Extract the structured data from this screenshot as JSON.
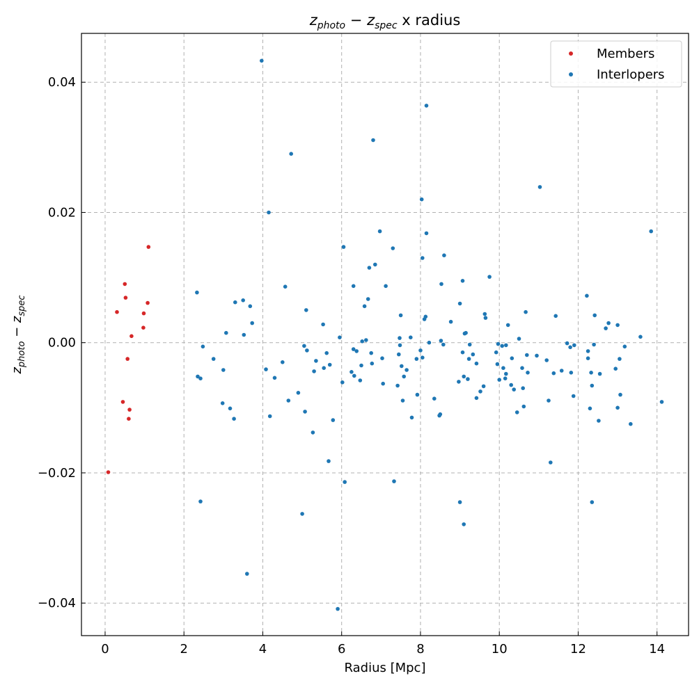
{
  "chart_data": {
    "type": "scatter",
    "title": {
      "var": "z",
      "sub_a": "photo",
      "minus": " − ",
      "sub_b": "spec",
      "suffix": " x radius"
    },
    "xlabel": "Radius [Mpc]",
    "ylabel": {
      "var": "z",
      "sub_a": "photo",
      "minus": " − ",
      "sub_b": "spec"
    },
    "xlim": [
      -0.6,
      14.8
    ],
    "ylim": [
      -0.045,
      0.0475
    ],
    "xticks": [
      0,
      2,
      4,
      6,
      8,
      10,
      12,
      14
    ],
    "xtick_labels": [
      "0",
      "2",
      "4",
      "6",
      "8",
      "10",
      "12",
      "14"
    ],
    "yticks": [
      -0.04,
      -0.02,
      0.0,
      0.02,
      0.04
    ],
    "ytick_labels": [
      "−0.04",
      "−0.02",
      "0.00",
      "0.02",
      "0.04"
    ],
    "grid": true,
    "legend_position": "top-right",
    "series": [
      {
        "name": "Members",
        "color": "#d62728",
        "points": [
          [
            0.08,
            -0.0199
          ],
          [
            0.3,
            0.0047
          ],
          [
            0.45,
            -0.0091
          ],
          [
            0.5,
            0.009
          ],
          [
            0.52,
            0.0069
          ],
          [
            0.57,
            -0.0025
          ],
          [
            0.6,
            -0.0117
          ],
          [
            0.62,
            -0.0103
          ],
          [
            0.67,
            0.001
          ],
          [
            0.97,
            0.0023
          ],
          [
            0.98,
            0.0045
          ],
          [
            1.08,
            0.0061
          ],
          [
            1.1,
            0.0147
          ]
        ]
      },
      {
        "name": "Interlopers",
        "color": "#1f77b4",
        "points": [
          [
            2.33,
            0.0077
          ],
          [
            2.35,
            -0.0052
          ],
          [
            2.42,
            -0.0055
          ],
          [
            2.42,
            -0.0244
          ],
          [
            2.48,
            -0.0006
          ],
          [
            2.75,
            -0.0025
          ],
          [
            2.98,
            -0.0093
          ],
          [
            3.0,
            -0.0042
          ],
          [
            3.07,
            0.0015
          ],
          [
            3.17,
            -0.0101
          ],
          [
            3.27,
            -0.0117
          ],
          [
            3.3,
            0.0062
          ],
          [
            3.5,
            0.0065
          ],
          [
            3.52,
            0.0012
          ],
          [
            3.6,
            -0.0355
          ],
          [
            3.68,
            0.0056
          ],
          [
            3.73,
            0.003
          ],
          [
            3.97,
            0.0433
          ],
          [
            4.08,
            -0.0041
          ],
          [
            4.15,
            0.02
          ],
          [
            4.18,
            -0.0113
          ],
          [
            4.3,
            -0.0054
          ],
          [
            4.5,
            -0.003
          ],
          [
            4.57,
            0.0086
          ],
          [
            4.65,
            -0.0089
          ],
          [
            4.72,
            0.029
          ],
          [
            4.9,
            -0.0077
          ],
          [
            5.0,
            -0.0263
          ],
          [
            5.05,
            -0.0005
          ],
          [
            5.07,
            -0.0106
          ],
          [
            5.1,
            0.005
          ],
          [
            5.12,
            -0.0012
          ],
          [
            5.27,
            -0.0138
          ],
          [
            5.3,
            -0.0044
          ],
          [
            5.35,
            -0.0028
          ],
          [
            5.53,
            0.0028
          ],
          [
            5.55,
            -0.0039
          ],
          [
            5.62,
            -0.0016
          ],
          [
            5.67,
            -0.0182
          ],
          [
            5.7,
            -0.0034
          ],
          [
            5.78,
            -0.0119
          ],
          [
            5.9,
            -0.0409
          ],
          [
            5.95,
            0.0008
          ],
          [
            6.02,
            -0.0061
          ],
          [
            6.05,
            0.0147
          ],
          [
            6.08,
            -0.0214
          ],
          [
            6.25,
            -0.0045
          ],
          [
            6.3,
            0.0087
          ],
          [
            6.3,
            -0.001
          ],
          [
            6.32,
            -0.0051
          ],
          [
            6.38,
            -0.0013
          ],
          [
            6.47,
            -0.0058
          ],
          [
            6.5,
            -0.0035
          ],
          [
            6.52,
            0.0002
          ],
          [
            6.58,
            0.0056
          ],
          [
            6.62,
            0.0004
          ],
          [
            6.67,
            0.0067
          ],
          [
            6.7,
            0.0115
          ],
          [
            6.75,
            -0.0016
          ],
          [
            6.77,
            -0.0032
          ],
          [
            6.8,
            0.0311
          ],
          [
            6.85,
            0.012
          ],
          [
            6.97,
            0.0171
          ],
          [
            7.03,
            -0.0024
          ],
          [
            7.05,
            -0.0063
          ],
          [
            7.12,
            0.0087
          ],
          [
            7.3,
            0.0145
          ],
          [
            7.33,
            -0.0213
          ],
          [
            7.42,
            -0.0066
          ],
          [
            7.45,
            -0.0018
          ],
          [
            7.47,
            0.0007
          ],
          [
            7.48,
            -0.0004
          ],
          [
            7.5,
            0.0042
          ],
          [
            7.52,
            -0.0036
          ],
          [
            7.55,
            -0.0089
          ],
          [
            7.58,
            -0.0052
          ],
          [
            7.65,
            -0.0042
          ],
          [
            7.75,
            0.0008
          ],
          [
            7.78,
            -0.0115
          ],
          [
            7.9,
            -0.0025
          ],
          [
            7.92,
            -0.008
          ],
          [
            8.0,
            -0.0012
          ],
          [
            8.03,
            0.022
          ],
          [
            8.05,
            -0.0023
          ],
          [
            8.05,
            0.013
          ],
          [
            8.1,
            0.0036
          ],
          [
            8.13,
            0.004
          ],
          [
            8.15,
            0.0364
          ],
          [
            8.15,
            0.0168
          ],
          [
            8.22,
            0.0
          ],
          [
            8.35,
            -0.0086
          ],
          [
            8.48,
            -0.0112
          ],
          [
            8.5,
            -0.011
          ],
          [
            8.52,
            0.0003
          ],
          [
            8.53,
            0.009
          ],
          [
            8.58,
            -0.0003
          ],
          [
            8.6,
            0.0134
          ],
          [
            8.77,
            0.0032
          ],
          [
            8.97,
            -0.006
          ],
          [
            9.0,
            0.006
          ],
          [
            9.0,
            -0.0245
          ],
          [
            9.07,
            0.0095
          ],
          [
            9.07,
            -0.0015
          ],
          [
            9.1,
            -0.0052
          ],
          [
            9.1,
            -0.0279
          ],
          [
            9.12,
            0.0014
          ],
          [
            9.15,
            0.0015
          ],
          [
            9.2,
            -0.0056
          ],
          [
            9.23,
            -0.0025
          ],
          [
            9.25,
            -0.0003
          ],
          [
            9.33,
            -0.0018
          ],
          [
            9.42,
            -0.0032
          ],
          [
            9.42,
            -0.0085
          ],
          [
            9.52,
            -0.0075
          ],
          [
            9.6,
            -0.0067
          ],
          [
            9.63,
            0.0044
          ],
          [
            9.65,
            0.0038
          ],
          [
            9.75,
            0.0101
          ],
          [
            9.92,
            -0.0015
          ],
          [
            9.95,
            -0.0033
          ],
          [
            9.97,
            -0.0002
          ],
          [
            10.0,
            -0.0057
          ],
          [
            10.07,
            -0.0005
          ],
          [
            10.1,
            -0.0039
          ],
          [
            10.15,
            -0.0055
          ],
          [
            10.17,
            -0.0048
          ],
          [
            10.17,
            -0.0004
          ],
          [
            10.22,
            0.0027
          ],
          [
            10.3,
            -0.0065
          ],
          [
            10.32,
            -0.0024
          ],
          [
            10.37,
            -0.0072
          ],
          [
            10.45,
            -0.0107
          ],
          [
            10.5,
            0.0006
          ],
          [
            10.58,
            -0.0039
          ],
          [
            10.6,
            -0.007
          ],
          [
            10.62,
            -0.0098
          ],
          [
            10.67,
            0.0047
          ],
          [
            10.7,
            -0.0019
          ],
          [
            10.72,
            -0.0046
          ],
          [
            10.95,
            -0.002
          ],
          [
            11.03,
            0.0239
          ],
          [
            11.2,
            -0.0027
          ],
          [
            11.25,
            -0.0089
          ],
          [
            11.3,
            -0.0184
          ],
          [
            11.38,
            -0.0047
          ],
          [
            11.43,
            0.0041
          ],
          [
            11.58,
            -0.0043
          ],
          [
            11.72,
            -0.0001
          ],
          [
            11.8,
            -0.0007
          ],
          [
            11.82,
            -0.0046
          ],
          [
            11.88,
            -0.0082
          ],
          [
            11.9,
            -0.0004
          ],
          [
            12.22,
            0.0072
          ],
          [
            12.25,
            -0.0024
          ],
          [
            12.25,
            -0.0013
          ],
          [
            12.3,
            -0.0101
          ],
          [
            12.33,
            -0.0046
          ],
          [
            12.35,
            -0.0066
          ],
          [
            12.35,
            -0.0245
          ],
          [
            12.4,
            -0.0003
          ],
          [
            12.42,
            0.0042
          ],
          [
            12.52,
            -0.012
          ],
          [
            12.55,
            -0.0048
          ],
          [
            12.7,
            0.0022
          ],
          [
            12.77,
            0.003
          ],
          [
            12.95,
            -0.004
          ],
          [
            13.0,
            -0.01
          ],
          [
            13.0,
            0.0027
          ],
          [
            13.05,
            -0.0025
          ],
          [
            13.07,
            -0.008
          ],
          [
            13.18,
            -0.0006
          ],
          [
            13.33,
            -0.0125
          ],
          [
            13.58,
            0.0009
          ],
          [
            13.85,
            0.0171
          ],
          [
            14.12,
            -0.0091
          ]
        ]
      }
    ]
  }
}
